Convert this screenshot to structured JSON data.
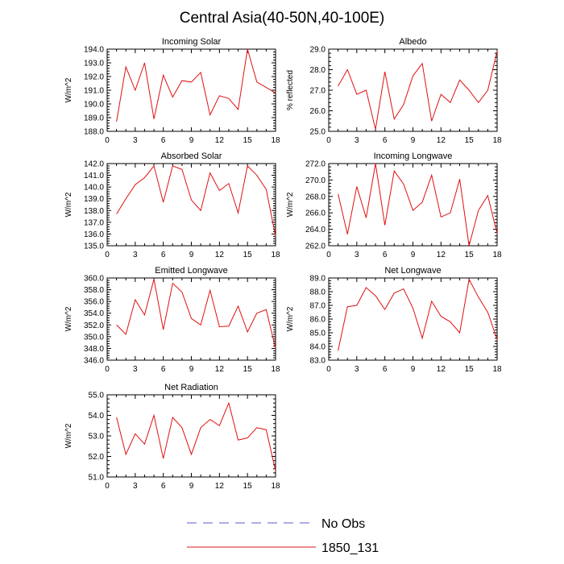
{
  "figure_title": "Central Asia(40-50N,40-100E)",
  "legend": {
    "entries": [
      {
        "label": "No Obs",
        "style": "dashed",
        "color": "#5b5bd6"
      },
      {
        "label": "1850_131",
        "style": "solid",
        "color": "#e01010"
      }
    ]
  },
  "chart_data": [
    {
      "type": "line",
      "title": "Incoming Solar",
      "ylabel": "W/m^2",
      "xlim": [
        0,
        18
      ],
      "ylim": [
        188.0,
        194.0
      ],
      "xticks": [
        0,
        3,
        6,
        9,
        12,
        15,
        18
      ],
      "yticks": [
        "188.0",
        "189.0",
        "190.0",
        "191.0",
        "192.0",
        "193.0",
        "194.0"
      ],
      "series": [
        {
          "x": [
            1,
            2,
            3,
            4,
            5,
            6,
            7,
            8,
            9,
            10,
            11,
            12,
            13,
            14,
            15,
            16,
            17,
            18
          ],
          "values": [
            188.7,
            192.7,
            191.0,
            193.0,
            188.9,
            192.1,
            190.5,
            191.7,
            191.6,
            192.3,
            189.2,
            190.6,
            190.4,
            189.6,
            194.0,
            191.6,
            191.2,
            190.8
          ]
        }
      ]
    },
    {
      "type": "line",
      "title": "Albedo",
      "ylabel": "% reflected",
      "xlim": [
        0,
        18
      ],
      "ylim": [
        25.0,
        29.0
      ],
      "xticks": [
        0,
        3,
        6,
        9,
        12,
        15,
        18
      ],
      "yticks": [
        "25.0",
        "26.0",
        "27.0",
        "28.0",
        "29.0"
      ],
      "series": [
        {
          "x": [
            1,
            2,
            3,
            4,
            5,
            6,
            7,
            8,
            9,
            10,
            11,
            12,
            13,
            14,
            15,
            16,
            17,
            18
          ],
          "values": [
            27.2,
            28.0,
            26.8,
            27.0,
            25.1,
            27.9,
            25.6,
            26.3,
            27.7,
            28.3,
            25.5,
            26.8,
            26.4,
            27.5,
            27.0,
            26.4,
            27.0,
            28.9
          ]
        }
      ]
    },
    {
      "type": "line",
      "title": "Absorbed Solar",
      "ylabel": "W/m^2",
      "xlim": [
        0,
        18
      ],
      "ylim": [
        135.0,
        142.0
      ],
      "xticks": [
        0,
        3,
        6,
        9,
        12,
        15,
        18
      ],
      "yticks": [
        "135.0",
        "136.0",
        "137.0",
        "138.0",
        "139.0",
        "140.0",
        "141.0",
        "142.0"
      ],
      "series": [
        {
          "x": [
            1,
            2,
            3,
            4,
            5,
            6,
            7,
            8,
            9,
            10,
            11,
            12,
            13,
            14,
            15,
            16,
            17,
            18
          ],
          "values": [
            137.7,
            139.0,
            140.2,
            140.8,
            141.8,
            138.7,
            141.8,
            141.5,
            138.9,
            138.0,
            141.2,
            139.7,
            140.3,
            137.8,
            141.8,
            141.0,
            139.8,
            135.8
          ]
        }
      ]
    },
    {
      "type": "line",
      "title": "Incoming Longwave",
      "ylabel": "W/m^2",
      "xlim": [
        0,
        18
      ],
      "ylim": [
        262.0,
        272.0
      ],
      "xticks": [
        0,
        3,
        6,
        9,
        12,
        15,
        18
      ],
      "yticks": [
        "262.0",
        "264.0",
        "266.0",
        "268.0",
        "270.0",
        "272.0"
      ],
      "series": [
        {
          "x": [
            1,
            2,
            3,
            4,
            5,
            6,
            7,
            8,
            9,
            10,
            11,
            12,
            13,
            14,
            15,
            16,
            17,
            18
          ],
          "values": [
            268.3,
            263.4,
            269.2,
            265.4,
            272.0,
            264.5,
            271.1,
            269.5,
            266.3,
            267.3,
            270.6,
            265.5,
            266.0,
            270.1,
            262.0,
            266.3,
            268.1,
            263.5
          ]
        }
      ]
    },
    {
      "type": "line",
      "title": "Emitted Longwave",
      "ylabel": "W/m^2",
      "xlim": [
        0,
        18
      ],
      "ylim": [
        346.0,
        360.0
      ],
      "xticks": [
        0,
        3,
        6,
        9,
        12,
        15,
        18
      ],
      "yticks": [
        "346.0",
        "348.0",
        "350.0",
        "352.0",
        "354.0",
        "356.0",
        "358.0",
        "360.0"
      ],
      "series": [
        {
          "x": [
            1,
            2,
            3,
            4,
            5,
            6,
            7,
            8,
            9,
            10,
            11,
            12,
            13,
            14,
            15,
            16,
            17,
            18
          ],
          "values": [
            352.0,
            350.4,
            356.3,
            353.7,
            359.8,
            351.2,
            359.1,
            357.6,
            353.1,
            352.0,
            357.9,
            351.7,
            351.8,
            355.2,
            350.8,
            354.0,
            354.6,
            348.0
          ]
        }
      ]
    },
    {
      "type": "line",
      "title": "Net Longwave",
      "ylabel": "W/m^2",
      "xlim": [
        0,
        18
      ],
      "ylim": [
        83.0,
        89.0
      ],
      "xticks": [
        0,
        3,
        6,
        9,
        12,
        15,
        18
      ],
      "yticks": [
        "83.0",
        "84.0",
        "85.0",
        "86.0",
        "87.0",
        "88.0",
        "89.0"
      ],
      "series": [
        {
          "x": [
            1,
            2,
            3,
            4,
            5,
            6,
            7,
            8,
            9,
            10,
            11,
            12,
            13,
            14,
            15,
            16,
            17,
            18
          ],
          "values": [
            83.7,
            86.9,
            87.0,
            88.3,
            87.7,
            86.7,
            87.9,
            88.2,
            86.8,
            84.6,
            87.3,
            86.2,
            85.8,
            85.0,
            88.9,
            87.6,
            86.5,
            84.5
          ]
        }
      ]
    },
    {
      "type": "line",
      "title": "Net Radiation",
      "ylabel": "W/m^2",
      "xlim": [
        0,
        18
      ],
      "ylim": [
        51.0,
        55.0
      ],
      "xticks": [
        0,
        3,
        6,
        9,
        12,
        15,
        18
      ],
      "yticks": [
        "51.0",
        "52.0",
        "53.0",
        "54.0",
        "55.0"
      ],
      "series": [
        {
          "x": [
            1,
            2,
            3,
            4,
            5,
            6,
            7,
            8,
            9,
            10,
            11,
            12,
            13,
            14,
            15,
            16,
            17,
            18
          ],
          "values": [
            53.9,
            52.1,
            53.1,
            52.6,
            54.0,
            51.9,
            53.9,
            53.4,
            52.1,
            53.4,
            53.8,
            53.5,
            54.6,
            52.8,
            52.9,
            53.4,
            53.3,
            51.3
          ]
        }
      ]
    }
  ]
}
